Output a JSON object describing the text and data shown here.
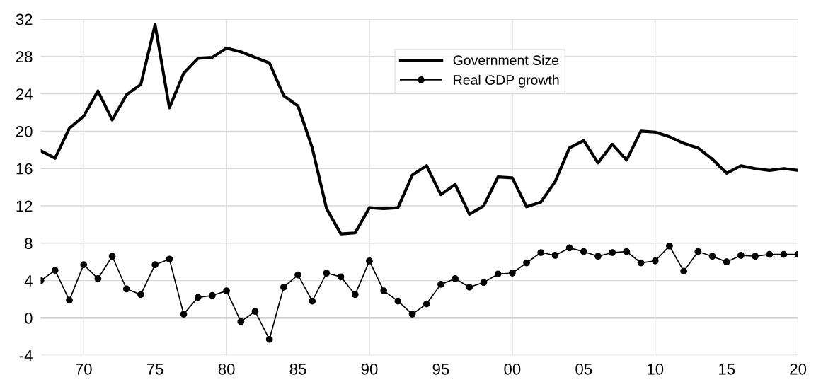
{
  "chart_data": {
    "type": "line",
    "x": [
      1967,
      1968,
      1969,
      1970,
      1971,
      1972,
      1973,
      1974,
      1975,
      1976,
      1977,
      1978,
      1979,
      1980,
      1981,
      1982,
      1983,
      1984,
      1985,
      1986,
      1987,
      1988,
      1989,
      1990,
      1991,
      1992,
      1993,
      1994,
      1995,
      1996,
      1997,
      1998,
      1999,
      2000,
      2001,
      2002,
      2003,
      2004,
      2005,
      2006,
      2007,
      2008,
      2009,
      2010,
      2011,
      2012,
      2013,
      2014,
      2015,
      2016,
      2017,
      2018,
      2019,
      2020
    ],
    "series": [
      {
        "name": "Government Size",
        "color": "#000000",
        "marker": "none",
        "values": [
          17.9,
          17.1,
          20.3,
          21.6,
          24.3,
          21.2,
          23.9,
          25.0,
          31.4,
          22.5,
          26.2,
          27.8,
          27.9,
          28.9,
          28.5,
          27.9,
          27.3,
          23.8,
          22.7,
          18.2,
          11.7,
          9.0,
          9.1,
          11.8,
          11.7,
          11.8,
          15.3,
          16.3,
          13.2,
          14.3,
          11.1,
          12.0,
          15.1,
          15.0,
          11.9,
          12.4,
          14.6,
          18.2,
          19.0,
          16.6,
          18.6,
          16.9,
          20.0,
          19.9,
          19.4,
          18.7,
          18.2,
          17.0,
          15.5,
          16.3,
          16.0,
          15.8,
          16.0,
          15.8
        ]
      },
      {
        "name": "Real GDP growth",
        "color": "#000000",
        "marker": "circle",
        "values": [
          4.0,
          5.1,
          1.9,
          5.7,
          4.2,
          6.6,
          3.1,
          2.5,
          5.7,
          6.3,
          0.4,
          2.2,
          2.4,
          2.9,
          -0.4,
          0.7,
          -2.3,
          3.3,
          4.6,
          1.8,
          4.8,
          4.4,
          2.5,
          6.1,
          2.9,
          1.8,
          0.4,
          1.5,
          3.6,
          4.2,
          3.3,
          3.8,
          4.7,
          4.8,
          5.9,
          7.0,
          6.7,
          7.5,
          7.1,
          6.6,
          7.0,
          7.1,
          5.9,
          6.1,
          7.7,
          5.0,
          7.1,
          6.6,
          6.0,
          6.7,
          6.6,
          6.8,
          6.8,
          6.8
        ]
      }
    ],
    "xlim": [
      1967,
      2020
    ],
    "xticks": [
      {
        "value": 1970,
        "label": "70"
      },
      {
        "value": 1975,
        "label": "75"
      },
      {
        "value": 1980,
        "label": "80"
      },
      {
        "value": 1985,
        "label": "85"
      },
      {
        "value": 1990,
        "label": "90"
      },
      {
        "value": 1995,
        "label": "95"
      },
      {
        "value": 2000,
        "label": "00"
      },
      {
        "value": 2005,
        "label": "05"
      },
      {
        "value": 2010,
        "label": "10"
      },
      {
        "value": 2015,
        "label": "15"
      },
      {
        "value": 2020,
        "label": "20"
      }
    ],
    "ylim": [
      -4,
      32
    ],
    "yticks": [
      -4,
      0,
      4,
      8,
      12,
      16,
      20,
      24,
      28,
      32
    ],
    "ref_lines": [
      {
        "axis": "y",
        "value": 0,
        "color": "#bfbfbf"
      }
    ],
    "grid": true,
    "legend": "top"
  }
}
